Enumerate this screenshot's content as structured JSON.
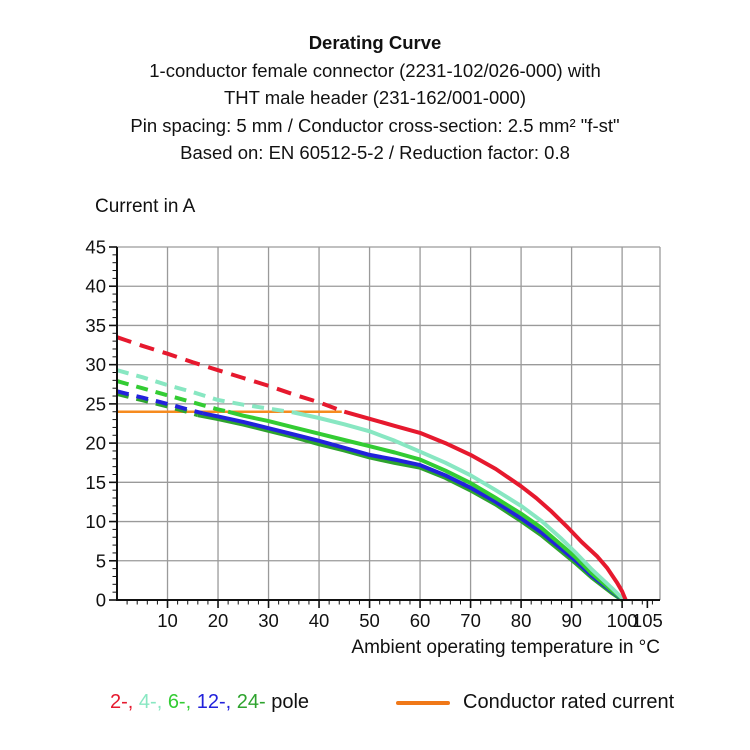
{
  "header": {
    "title": "Derating Curve",
    "subtitle_lines": [
      "1-conductor female connector (2231-102/026-000) with",
      "THT male header (231-162/001-000)",
      "Pin spacing: 5 mm / Conductor cross-section: 2.5 mm² \"f-st\"",
      "Based on: EN 60512-5-2 / Reduction factor: 0.8"
    ]
  },
  "chart_data": {
    "type": "line",
    "title": "Derating Curve",
    "ylabel": "Current in A",
    "xlabel": "Ambient operating temperature in °C",
    "xlim": [
      0,
      107.5
    ],
    "ylim": [
      0,
      45
    ],
    "x_major_ticks": [
      10,
      20,
      30,
      40,
      50,
      60,
      70,
      80,
      90,
      100,
      105
    ],
    "y_major_ticks": [
      0,
      5,
      10,
      15,
      20,
      25,
      30,
      35,
      40,
      45
    ],
    "x_minor_step": 2,
    "y_minor_step": 1,
    "grid": true,
    "grid_color": "#9a9a9a",
    "axis_color": "#111111",
    "rated_current": {
      "label": "Conductor rated current",
      "value": 24,
      "x_start": 0,
      "x_end": 44.5,
      "color": "#F68B1F"
    },
    "series": [
      {
        "name": "2-pole",
        "color": "#E6192E",
        "width": 4,
        "dash": [
          15,
          9
        ],
        "dash_until_x": 45,
        "points": [
          [
            0,
            33.5
          ],
          [
            5,
            32.4
          ],
          [
            10,
            31.4
          ],
          [
            15,
            30.3
          ],
          [
            20,
            29.3
          ],
          [
            25,
            28.3
          ],
          [
            30,
            27.3
          ],
          [
            35,
            26.2
          ],
          [
            40,
            25.2
          ],
          [
            45,
            24
          ],
          [
            50,
            23.1
          ],
          [
            55,
            22.2
          ],
          [
            60,
            21.3
          ],
          [
            65,
            20.0
          ],
          [
            70,
            18.5
          ],
          [
            75,
            16.7
          ],
          [
            80,
            14.5
          ],
          [
            83,
            13.0
          ],
          [
            86,
            11.3
          ],
          [
            89,
            9.4
          ],
          [
            92,
            7.4
          ],
          [
            95,
            5.6
          ],
          [
            97,
            4.1
          ],
          [
            99,
            2.2
          ],
          [
            100,
            1.1
          ],
          [
            100.7,
            0
          ]
        ]
      },
      {
        "name": "4-pole",
        "color": "#88E7C2",
        "width": 4,
        "dash": [
          12,
          8
        ],
        "dash_until_x": 35,
        "points": [
          [
            0,
            29.3
          ],
          [
            5,
            28.4
          ],
          [
            10,
            27.4
          ],
          [
            15,
            26.5
          ],
          [
            20,
            25.5
          ],
          [
            25,
            24.9
          ],
          [
            30,
            24.4
          ],
          [
            35,
            23.9
          ],
          [
            40,
            23.2
          ],
          [
            45,
            22.4
          ],
          [
            50,
            21.5
          ],
          [
            55,
            20.3
          ],
          [
            60,
            18.9
          ],
          [
            65,
            17.5
          ],
          [
            70,
            15.9
          ],
          [
            75,
            14.0
          ],
          [
            80,
            12.0
          ],
          [
            84,
            10.1
          ],
          [
            88,
            7.8
          ],
          [
            91,
            5.9
          ],
          [
            94,
            3.9
          ],
          [
            96,
            2.7
          ],
          [
            98,
            1.5
          ],
          [
            100.4,
            0
          ]
        ]
      },
      {
        "name": "6-pole",
        "color": "#33CC33",
        "width": 4,
        "dash": [
          12,
          8
        ],
        "dash_until_x": 22,
        "points": [
          [
            0,
            27.9
          ],
          [
            5,
            27.0
          ],
          [
            10,
            26.1
          ],
          [
            15,
            25.2
          ],
          [
            20,
            24.3
          ],
          [
            22,
            24.0
          ],
          [
            25,
            23.5
          ],
          [
            30,
            22.8
          ],
          [
            35,
            22.0
          ],
          [
            40,
            21.2
          ],
          [
            45,
            20.4
          ],
          [
            50,
            19.6
          ],
          [
            55,
            18.8
          ],
          [
            60,
            17.9
          ],
          [
            65,
            16.5
          ],
          [
            70,
            14.9
          ],
          [
            75,
            13.0
          ],
          [
            80,
            11.0
          ],
          [
            84,
            9.2
          ],
          [
            88,
            7.0
          ],
          [
            91,
            5.3
          ],
          [
            94,
            3.4
          ],
          [
            96,
            2.3
          ],
          [
            98,
            1.2
          ],
          [
            100.3,
            0
          ]
        ]
      },
      {
        "name": "12-pole",
        "color": "#2222DB",
        "width": 4,
        "dash": [
          12,
          8
        ],
        "dash_until_x": 17,
        "points": [
          [
            0,
            26.6
          ],
          [
            5,
            25.8
          ],
          [
            10,
            25.0
          ],
          [
            14,
            24.3
          ],
          [
            17,
            23.8
          ],
          [
            20,
            23.4
          ],
          [
            25,
            22.7
          ],
          [
            30,
            21.9
          ],
          [
            35,
            21.1
          ],
          [
            40,
            20.3
          ],
          [
            45,
            19.4
          ],
          [
            50,
            18.5
          ],
          [
            55,
            17.9
          ],
          [
            60,
            17.2
          ],
          [
            65,
            15.9
          ],
          [
            70,
            14.3
          ],
          [
            75,
            12.5
          ],
          [
            80,
            10.4
          ],
          [
            84,
            8.6
          ],
          [
            88,
            6.5
          ],
          [
            91,
            4.9
          ],
          [
            94,
            3.1
          ],
          [
            96,
            2.1
          ],
          [
            98,
            1.1
          ],
          [
            100.2,
            0
          ]
        ]
      },
      {
        "name": "24-pole",
        "color": "#2EA32E",
        "width": 4.5,
        "dash": [
          12,
          8
        ],
        "dash_until_x": 16,
        "points": [
          [
            0,
            26.3
          ],
          [
            5,
            25.5
          ],
          [
            10,
            24.7
          ],
          [
            14,
            24.0
          ],
          [
            16,
            23.6
          ],
          [
            20,
            23.1
          ],
          [
            25,
            22.4
          ],
          [
            30,
            21.6
          ],
          [
            35,
            20.8
          ],
          [
            40,
            19.9
          ],
          [
            45,
            19.1
          ],
          [
            50,
            18.2
          ],
          [
            55,
            17.5
          ],
          [
            60,
            16.9
          ],
          [
            65,
            15.6
          ],
          [
            70,
            14.0
          ],
          [
            75,
            12.2
          ],
          [
            80,
            10.1
          ],
          [
            84,
            8.3
          ],
          [
            88,
            6.2
          ],
          [
            91,
            4.6
          ],
          [
            94,
            2.9
          ],
          [
            96,
            1.9
          ],
          [
            98,
            0.9
          ],
          [
            100.1,
            0
          ]
        ]
      }
    ],
    "legend_position": "bottom"
  },
  "legend": {
    "pole_items": [
      {
        "label": "2-",
        "color": "#E6192E"
      },
      {
        "label": "4-",
        "color": "#88E7C2"
      },
      {
        "label": "6-",
        "color": "#33CC33"
      },
      {
        "label": "12-",
        "color": "#2222DB"
      },
      {
        "label": "24-",
        "color": "#2EA32E"
      }
    ],
    "pole_suffix": "pole",
    "rated_label": "Conductor rated current",
    "rated_color": "#F07818"
  }
}
